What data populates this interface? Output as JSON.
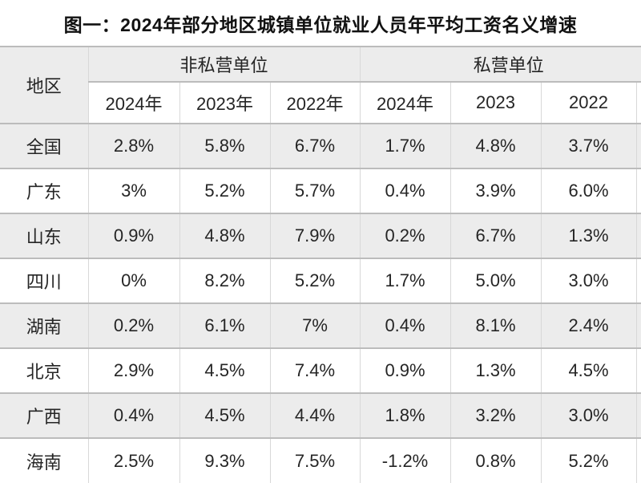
{
  "chart_data": {
    "type": "table",
    "title": "图一：2024年部分地区城镇单位就业人员年平均工资名义增速",
    "region_header": "地区",
    "groups": [
      {
        "label": "非私营单位",
        "years": [
          "2024年",
          "2023年",
          "2022年"
        ]
      },
      {
        "label": "私营单位",
        "years": [
          "2024年",
          "2023",
          "2022"
        ]
      }
    ],
    "rows": [
      {
        "region": "全国",
        "values": [
          "2.8%",
          "5.8%",
          "6.7%",
          "1.7%",
          "4.8%",
          "3.7%"
        ]
      },
      {
        "region": "广东",
        "values": [
          "3%",
          "5.2%",
          "5.7%",
          "0.4%",
          "3.9%",
          "6.0%"
        ]
      },
      {
        "region": "山东",
        "values": [
          "0.9%",
          "4.8%",
          "7.9%",
          "0.2%",
          "6.7%",
          "1.3%"
        ]
      },
      {
        "region": "四川",
        "values": [
          "0%",
          "8.2%",
          "5.2%",
          "1.7%",
          "5.0%",
          "3.0%"
        ]
      },
      {
        "region": "湖南",
        "values": [
          "0.2%",
          "6.1%",
          "7%",
          "0.4%",
          "8.1%",
          "2.4%"
        ]
      },
      {
        "region": "北京",
        "values": [
          "2.9%",
          "4.5%",
          "7.4%",
          "0.9%",
          "1.3%",
          "4.5%"
        ]
      },
      {
        "region": "广西",
        "values": [
          "0.4%",
          "4.5%",
          "4.4%",
          "1.8%",
          "3.2%",
          "3.0%"
        ]
      },
      {
        "region": "海南",
        "values": [
          "2.5%",
          "9.3%",
          "7.5%",
          "-1.2%",
          "0.8%",
          "5.2%"
        ]
      }
    ],
    "layout_hints": {
      "header_rows": 2,
      "zebra_striping": "first data row shaded",
      "right_edge_clipped": true
    }
  },
  "colors": {
    "stripe_bg": "#ececec",
    "row_bg": "#ffffff",
    "border_horizontal": "#bcbcbc",
    "border_vertical": "#d8d8d8",
    "text": "#252525",
    "title_text": "#111111"
  }
}
